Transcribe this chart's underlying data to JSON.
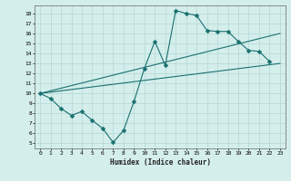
{
  "xlabel": "Humidex (Indice chaleur)",
  "bg_color": "#d4eeec",
  "line_color": "#1a7070",
  "grid_color": "#b8dbd8",
  "xlim": [
    -0.5,
    23.5
  ],
  "ylim": [
    4.5,
    18.8
  ],
  "xticks": [
    0,
    1,
    2,
    3,
    4,
    5,
    6,
    7,
    8,
    9,
    10,
    11,
    12,
    13,
    14,
    15,
    16,
    17,
    18,
    19,
    20,
    21,
    22,
    23
  ],
  "yticks": [
    5,
    6,
    7,
    8,
    9,
    10,
    11,
    12,
    13,
    14,
    15,
    16,
    17,
    18
  ],
  "curve1_x": [
    0,
    1,
    2,
    3,
    4,
    5,
    6,
    7,
    8,
    9,
    10,
    11,
    12,
    13,
    14,
    15,
    16,
    17,
    18,
    19,
    20,
    21,
    22
  ],
  "curve1_y": [
    10.0,
    9.5,
    8.5,
    7.8,
    8.2,
    7.3,
    6.5,
    5.1,
    6.3,
    9.2,
    12.5,
    15.2,
    12.8,
    18.3,
    18.0,
    17.8,
    16.3,
    16.2,
    16.2,
    15.2,
    14.3,
    14.2,
    13.2
  ],
  "curve2_x": [
    0,
    23
  ],
  "curve2_y": [
    10.0,
    13.0
  ],
  "curve3_x": [
    0,
    23
  ],
  "curve3_y": [
    10.0,
    16.0
  ],
  "marker": "D",
  "marker_size": 2.5
}
